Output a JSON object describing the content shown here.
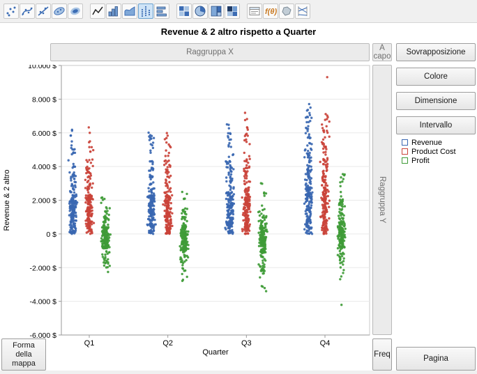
{
  "title": "Revenue & 2 altro rispetto a Quarter",
  "toolbar": {
    "icons": [
      "points",
      "smoother",
      "line-of-fit",
      "ellipse",
      "contour",
      "line-chart",
      "bar-chart",
      "area-chart",
      "points-jitter",
      "horizontal-bars",
      "heatmap",
      "pie",
      "treemap",
      "mosaic",
      "caption-box",
      "formula",
      "map-shapes",
      "parallel-plot"
    ],
    "selected_icon": "points-jitter"
  },
  "drop_zones": {
    "group_x": "Raggruppa X",
    "wrap": "A capo",
    "group_y": "Raggruppa Y",
    "freq": "Freq",
    "map_shape": "Forma della mappa",
    "page": "Pagina"
  },
  "right_panel": {
    "buttons": [
      "Sovrapposizione",
      "Colore",
      "Dimensione",
      "Intervallo"
    ]
  },
  "legend": {
    "items": [
      {
        "label": "Revenue",
        "color": "#3a67b1"
      },
      {
        "label": "Product Cost",
        "color": "#ca4339"
      },
      {
        "label": "Profit",
        "color": "#3f9b37"
      }
    ]
  },
  "axes": {
    "y_title": "Revenue & 2 altro",
    "x_title": "Quarter",
    "y_ticks": [
      "10.000 $",
      "8.000 $",
      "6.000 $",
      "4.000 $",
      "2.000 $",
      "0 $",
      "-2.000 $",
      "-4.000 $",
      "-6.000 $"
    ],
    "x_ticks": [
      "Q1",
      "Q2",
      "Q3",
      "Q4"
    ]
  },
  "chart_data": {
    "type": "scatter",
    "variant": "jittered-strip",
    "title": "Revenue & 2 altro rispetto a Quarter",
    "xlabel": "Quarter",
    "ylabel": "Revenue & 2 altro",
    "ylim": [
      -6000,
      10000
    ],
    "ytick_step": 2000,
    "grid": true,
    "legend_position": "right",
    "categories": [
      "Q1",
      "Q2",
      "Q3",
      "Q4"
    ],
    "series": [
      {
        "name": "Revenue",
        "color": "#3a67b1",
        "bands": [
          [
            [
              140,
              0,
              2300
            ],
            [
              38,
              2300,
              4200
            ],
            [
              12,
              4200,
              5600
            ],
            [
              4,
              5600,
              6200
            ]
          ],
          [
            [
              140,
              0,
              2300
            ],
            [
              38,
              2300,
              4400
            ],
            [
              12,
              4400,
              5800
            ],
            [
              3,
              5800,
              6400
            ]
          ],
          [
            [
              140,
              0,
              2500
            ],
            [
              42,
              2500,
              4600
            ],
            [
              13,
              4600,
              6000
            ],
            [
              3,
              6000,
              6700
            ]
          ],
          [
            [
              135,
              0,
              2800
            ],
            [
              55,
              2800,
              5200
            ],
            [
              22,
              5200,
              7000
            ],
            [
              6,
              7000,
              7800
            ]
          ]
        ]
      },
      {
        "name": "Product Cost",
        "color": "#ca4339",
        "bands": [
          [
            [
              140,
              0,
              2300
            ],
            [
              38,
              2300,
              4300
            ],
            [
              10,
              4300,
              5600
            ],
            [
              2,
              5600,
              6400
            ]
          ],
          [
            [
              140,
              0,
              2300
            ],
            [
              38,
              2300,
              4400
            ],
            [
              10,
              4400,
              5700
            ],
            [
              2,
              5700,
              6500
            ]
          ],
          [
            [
              140,
              0,
              2400
            ],
            [
              42,
              2400,
              4800
            ],
            [
              12,
              4800,
              6500
            ],
            [
              3,
              6500,
              7500
            ]
          ],
          [
            [
              135,
              0,
              2900
            ],
            [
              50,
              2900,
              5400
            ],
            [
              18,
              5400,
              7200
            ],
            [
              1,
              9200,
              9350
            ]
          ]
        ]
      },
      {
        "name": "Profit",
        "color": "#3f9b37",
        "bands": [
          [
            [
              130,
              -900,
              400
            ],
            [
              28,
              400,
              1500
            ],
            [
              8,
              1500,
              2700
            ],
            [
              22,
              -1900,
              -900
            ],
            [
              3,
              -2500,
              -1900
            ]
          ],
          [
            [
              130,
              -1000,
              400
            ],
            [
              26,
              400,
              1500
            ],
            [
              6,
              1500,
              2600
            ],
            [
              26,
              -2200,
              -1000
            ],
            [
              4,
              -3100,
              -2200
            ]
          ],
          [
            [
              130,
              -1100,
              400
            ],
            [
              26,
              400,
              1600
            ],
            [
              7,
              1600,
              3100
            ],
            [
              28,
              -2400,
              -1100
            ],
            [
              5,
              -3400,
              -2400
            ]
          ],
          [
            [
              125,
              -800,
              700
            ],
            [
              32,
              700,
              2000
            ],
            [
              12,
              2000,
              3600
            ],
            [
              22,
              -2000,
              -800
            ],
            [
              4,
              -3000,
              -2000
            ],
            [
              1,
              -4300,
              -4200
            ]
          ]
        ]
      }
    ]
  }
}
